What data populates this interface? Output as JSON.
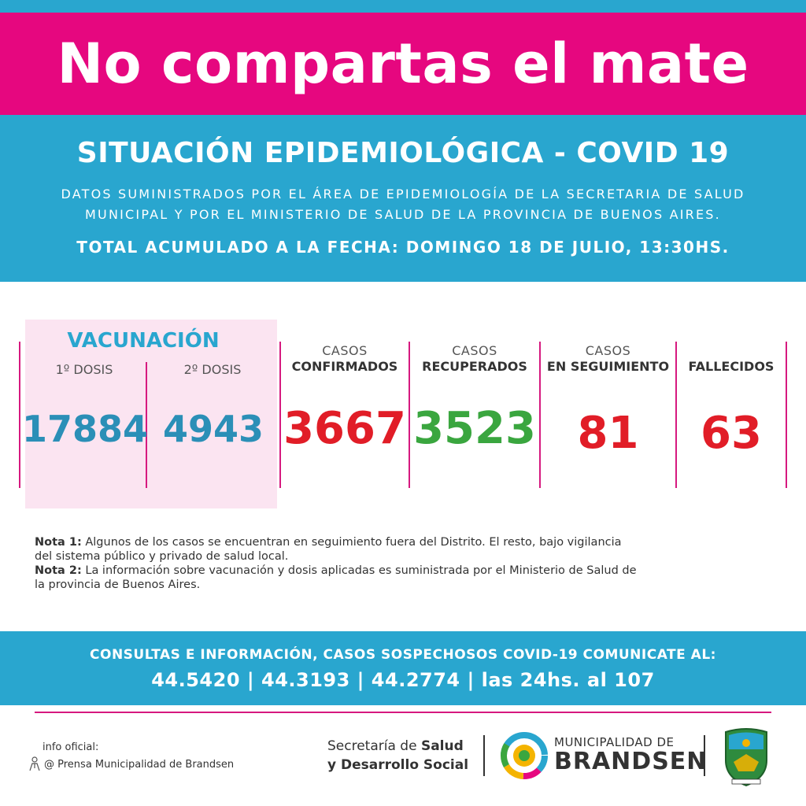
{
  "banner": {
    "title": "No compartas el mate"
  },
  "header": {
    "title": "SITUACIÓN EPIDEMIOLÓGICA - COVID 19",
    "subtitle_line1": "DATOS SUMINISTRADOS POR EL ÁREA DE EPIDEMIOLOGÍA DE LA SECRETARIA DE SALUD",
    "subtitle_line2": "MUNICIPAL Y POR EL MINISTERIO DE SALUD DE LA PROVINCIA DE BUENOS AIRES.",
    "date": "TOTAL ACUMULADO A LA FECHA: DOMINGO 18 DE JULIO, 13:30HS."
  },
  "vacunacion": {
    "title": "VACUNACIÓN",
    "dose1": {
      "label": "1º DOSIS",
      "value": "17884"
    },
    "dose2": {
      "label": "2º DOSIS",
      "value": "4943"
    }
  },
  "stats": {
    "confirmados": {
      "label1": "CASOS",
      "label2": "CONFIRMADOS",
      "value": "3667",
      "color": "#e11d27"
    },
    "recuperados": {
      "label1": "CASOS",
      "label2": "RECUPERADOS",
      "value": "3523",
      "color": "#3aa63f"
    },
    "seguimiento": {
      "label1": "CASOS",
      "label2": "EN SEGUIMIENTO",
      "value": "81",
      "color": "#e11d27"
    },
    "fallecidos": {
      "label2": "FALLECIDOS",
      "value": "63",
      "color": "#e11d27"
    }
  },
  "notes": {
    "nota1_label": "Nota 1:",
    "nota1_text1": " Algunos de los casos se encuentran en seguimiento fuera del Distrito. El resto, bajo vigilancia",
    "nota1_text2": "del sistema público y privado de salud local.",
    "nota2_label": "Nota 2:",
    "nota2_text1": " La información sobre vacunación y dosis aplicadas es suministrada por el Ministerio de Salud de",
    "nota2_text2": "la provincia de Buenos Aires."
  },
  "contact": {
    "line1": "CONSULTAS E INFORMACIÓN, CASOS SOSPECHOSOS COVID-19 COMUNICATE AL:",
    "line2": "44.5420 | 44.3193 | 44.2774 | las 24hs. al 107"
  },
  "footer": {
    "info_line1": "info oficial:",
    "info_line2": "@ Prensa Municipalidad de Brandsen",
    "secretaria_pre1": "Secretaría de ",
    "secretaria_bold1": "Salud",
    "secretaria_line2": "y Desarrollo Social",
    "muni_line1": "MUNICIPALIDAD DE",
    "muni_line2": "BRANDSEN",
    "icons": [
      "people-icon",
      "municipal-logo",
      "brandsen-shield-icon"
    ]
  },
  "colors": {
    "pink": "#e6077f",
    "blue": "#29a6cf",
    "red": "#e11d27",
    "green": "#3aa63f",
    "vac_bg": "#fbe4f1"
  }
}
